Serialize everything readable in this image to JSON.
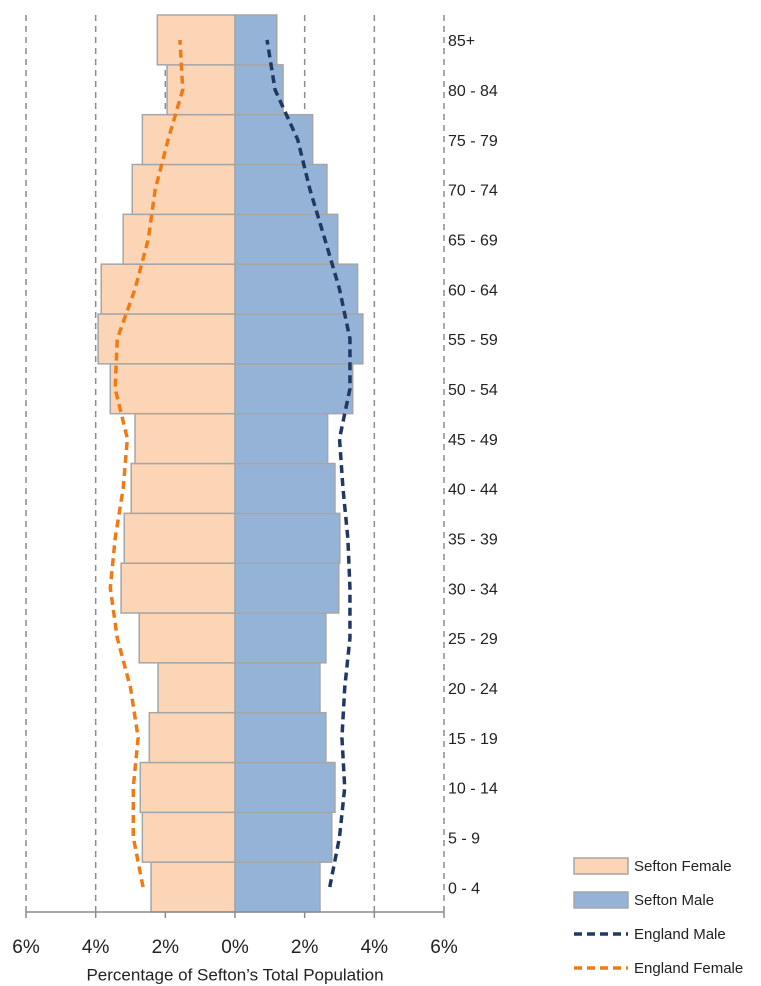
{
  "chart_data": {
    "type": "bar",
    "orientation": "horizontal",
    "xlabel": "Percentage of Sefton’s Total Population",
    "categories": [
      "0 - 4",
      "5 - 9",
      "10 - 14",
      "15 - 19",
      "20 - 24",
      "25 - 29",
      "30 - 34",
      "35 - 39",
      "40 - 44",
      "45 - 49",
      "50 - 54",
      "55 - 59",
      "60 - 64",
      "65 - 69",
      "70 - 74",
      "75 - 79",
      "80 - 84",
      "85+"
    ],
    "series": [
      {
        "name": "Sefton Female",
        "kind": "bar",
        "color": "#fbd5b5",
        "values": [
          -2.41,
          -2.66,
          -2.72,
          -2.46,
          -2.21,
          -2.75,
          -3.27,
          -3.18,
          -2.98,
          -2.87,
          -3.58,
          -3.93,
          -3.84,
          -3.21,
          -2.95,
          -2.66,
          -1.95,
          -2.23
        ]
      },
      {
        "name": "Sefton Male",
        "kind": "bar",
        "color": "#95b3d7",
        "values": [
          2.44,
          2.78,
          2.87,
          2.61,
          2.44,
          2.61,
          2.98,
          3.01,
          2.87,
          2.66,
          3.38,
          3.67,
          3.52,
          2.95,
          2.64,
          2.23,
          1.38,
          1.2
        ]
      },
      {
        "name": "England Male",
        "kind": "line",
        "color": "#1f3864",
        "values": [
          2.72,
          3.0,
          3.15,
          3.07,
          3.15,
          3.3,
          3.3,
          3.24,
          3.1,
          3.0,
          3.3,
          3.3,
          3.0,
          2.58,
          2.15,
          1.8,
          1.15,
          0.92
        ]
      },
      {
        "name": "England Female",
        "kind": "line",
        "color": "#f07b16",
        "values": [
          -2.64,
          -2.92,
          -2.92,
          -2.78,
          -3.0,
          -3.38,
          -3.58,
          -3.44,
          -3.21,
          -3.09,
          -3.44,
          -3.38,
          -2.87,
          -2.49,
          -2.29,
          -1.92,
          -1.5,
          -1.58
        ]
      }
    ],
    "xlim": [
      -6,
      6
    ],
    "xticks": [
      {
        "value": -6,
        "label": "6%"
      },
      {
        "value": -4,
        "label": "4%"
      },
      {
        "value": -2,
        "label": "2%"
      },
      {
        "value": 0,
        "label": "0%"
      },
      {
        "value": 2,
        "label": "2%"
      },
      {
        "value": 4,
        "label": "4%"
      },
      {
        "value": 6,
        "label": "6%"
      }
    ],
    "grid": true,
    "legend": "lower right"
  }
}
